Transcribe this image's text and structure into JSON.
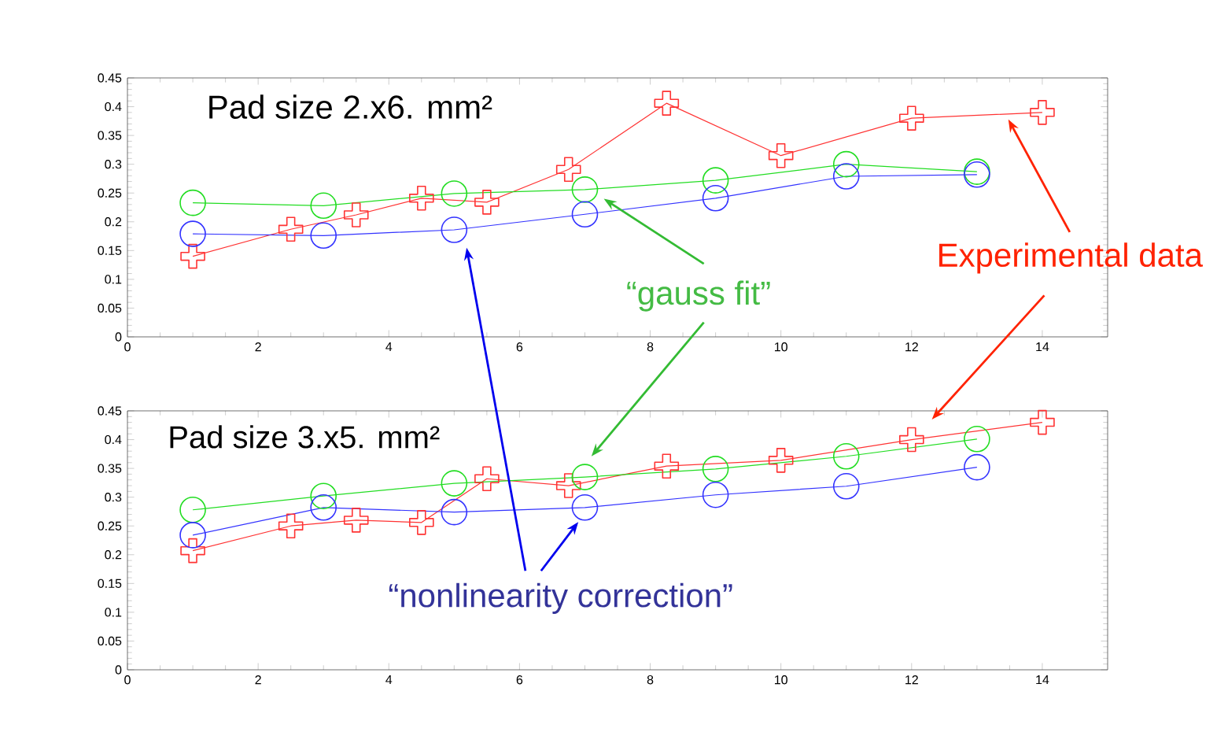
{
  "chart_data": [
    {
      "type": "line",
      "x": [
        1,
        3,
        5,
        7,
        9,
        11,
        13
      ],
      "series": [
        {
          "color": "#ff3333",
          "marker": "cross",
          "x": [
            1,
            2.5,
            3.5,
            4.5,
            5.5,
            6.75,
            8.25,
            10,
            12,
            14
          ],
          "values": [
            0.14,
            0.187,
            0.212,
            0.241,
            0.234,
            0.291,
            0.406,
            0.315,
            0.38,
            0.39
          ]
        },
        {
          "color": "#22dd22",
          "marker": "circle",
          "values": [
            0.233,
            0.228,
            0.249,
            0.256,
            0.272,
            0.3,
            0.287
          ]
        },
        {
          "color": "#3333ff",
          "marker": "circle",
          "values": [
            0.179,
            0.176,
            0.186,
            0.213,
            0.241,
            0.279,
            0.282
          ]
        }
      ],
      "xlim": [
        0,
        15
      ],
      "ylim": [
        0,
        0.45
      ],
      "xticks": [
        0,
        2,
        4,
        6,
        8,
        10,
        12,
        14
      ],
      "yticks": [
        0,
        0.05,
        0.1,
        0.15,
        0.2,
        0.25,
        0.3,
        0.35,
        0.4,
        0.45
      ],
      "annotations": [
        "Pad size 2.x6. mm²",
        "“gauss fit”",
        "Experimental data"
      ]
    },
    {
      "type": "line",
      "x": [
        1,
        3,
        5,
        7,
        9,
        11,
        13
      ],
      "series": [
        {
          "color": "#ff3333",
          "marker": "cross",
          "x": [
            1,
            2.5,
            3.5,
            4.5,
            5.5,
            6.75,
            8.25,
            10,
            12,
            14
          ],
          "values": [
            0.207,
            0.25,
            0.26,
            0.256,
            0.332,
            0.32,
            0.354,
            0.364,
            0.4,
            0.43
          ]
        },
        {
          "color": "#22dd22",
          "marker": "circle",
          "values": [
            0.278,
            0.302,
            0.324,
            0.335,
            0.349,
            0.371,
            0.401
          ]
        },
        {
          "color": "#3333ff",
          "marker": "circle",
          "values": [
            0.234,
            0.282,
            0.274,
            0.282,
            0.304,
            0.319,
            0.352
          ]
        }
      ],
      "xlim": [
        0,
        15
      ],
      "ylim": [
        0,
        0.45
      ],
      "xticks": [
        0,
        2,
        4,
        6,
        8,
        10,
        12,
        14
      ],
      "yticks": [
        0,
        0.05,
        0.1,
        0.15,
        0.2,
        0.25,
        0.3,
        0.35,
        0.4,
        0.45
      ],
      "annotations": [
        "Pad size 3.x5. mm²",
        "“nonlinearity correction”"
      ]
    }
  ]
}
